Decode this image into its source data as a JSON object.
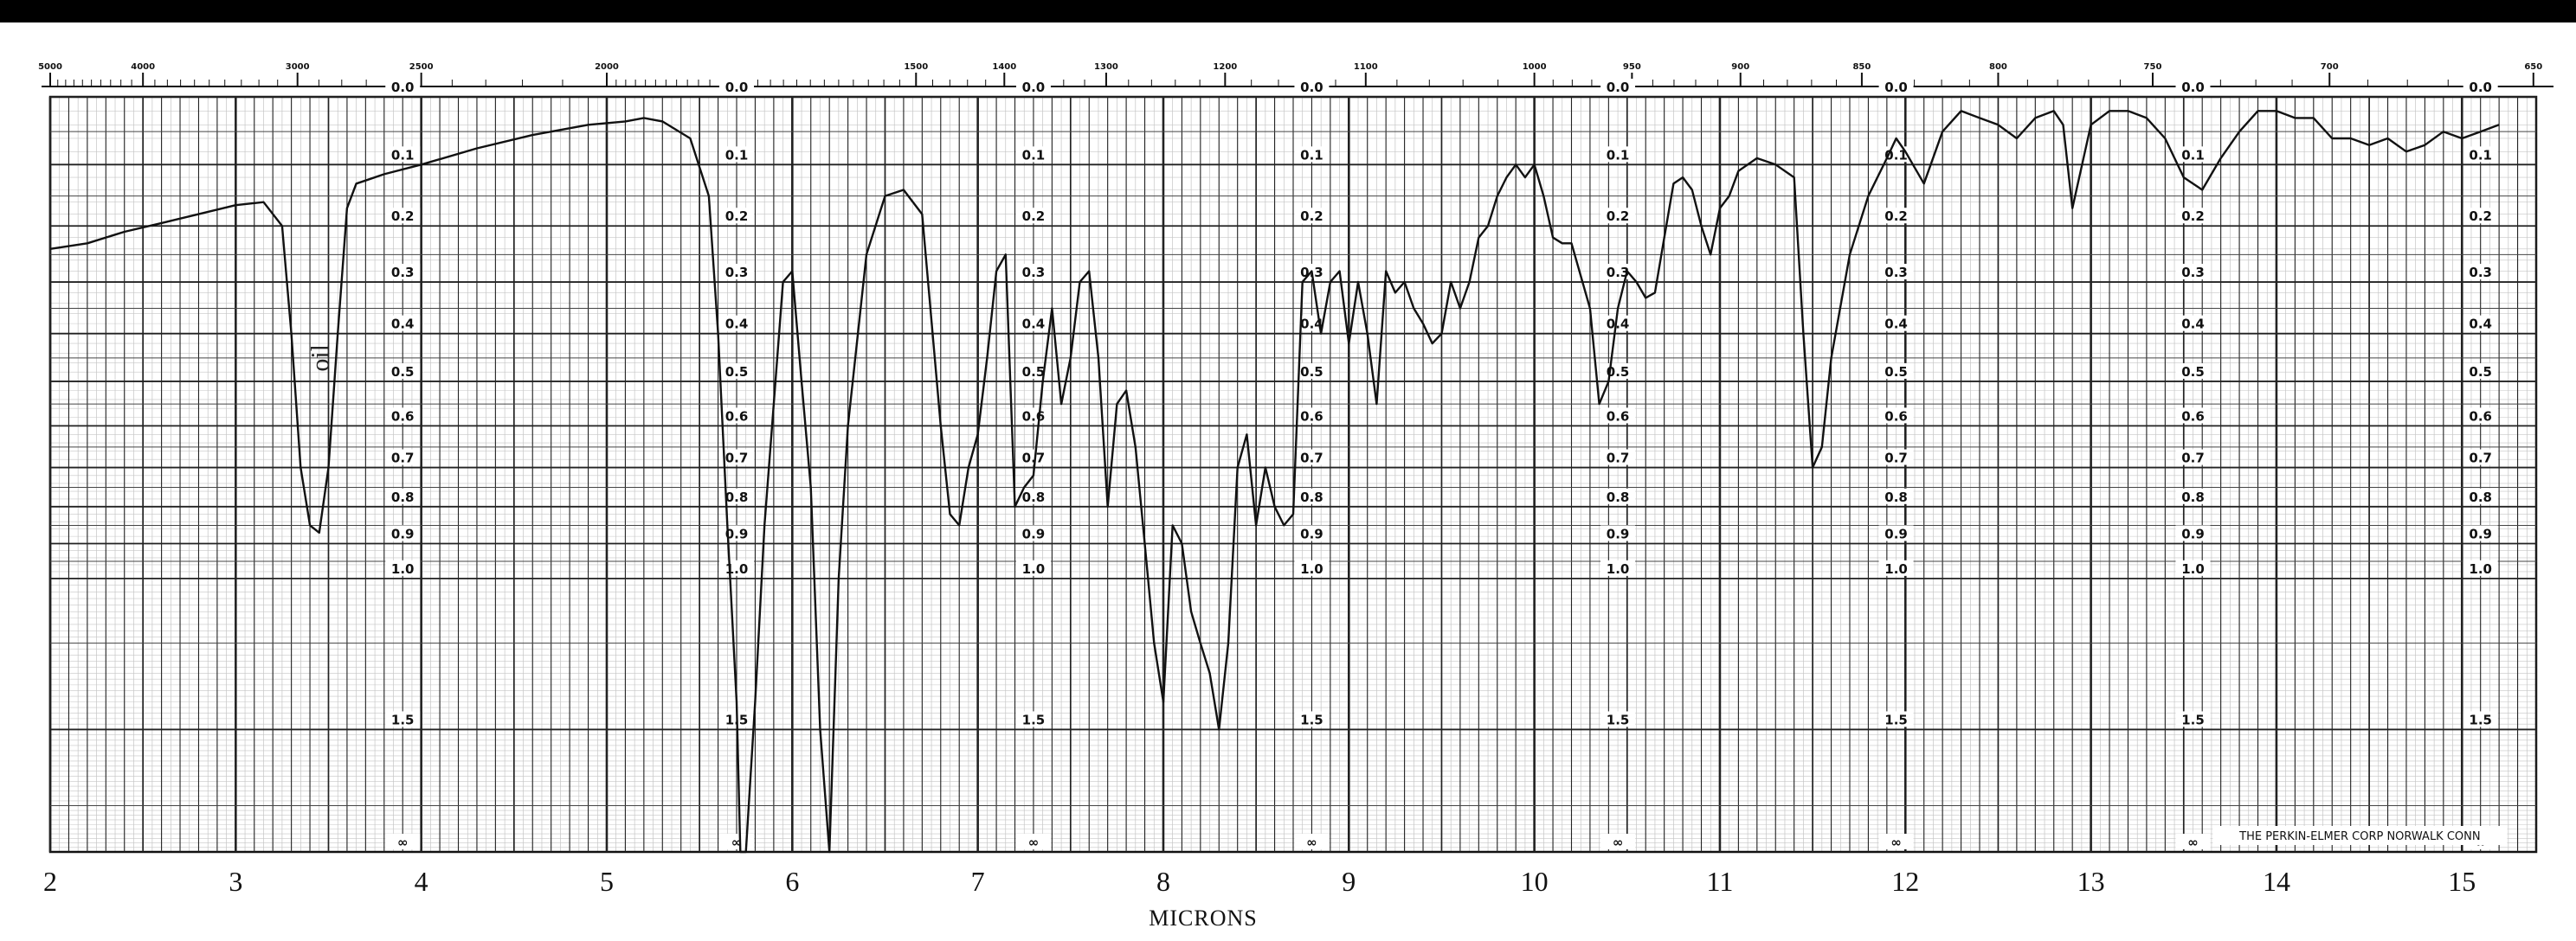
{
  "chart_data": {
    "type": "line",
    "xlabel": "MICRONS",
    "micron_ticks": [
      "2",
      "3",
      "4",
      "5",
      "6",
      "7",
      "8",
      "9",
      "10",
      "11",
      "12",
      "13",
      "14",
      "15"
    ],
    "wavenumber_ticks": [
      {
        "label": "5000",
        "um": 2.0
      },
      {
        "label": "4000",
        "um": 2.5
      },
      {
        "label": "3000",
        "um": 3.333
      },
      {
        "label": "2500",
        "um": 4.0
      },
      {
        "label": "2000",
        "um": 5.0
      },
      {
        "label": "1500",
        "um": 6.667
      },
      {
        "label": "1400",
        "um": 7.143
      },
      {
        "label": "1300",
        "um": 7.692
      },
      {
        "label": "1200",
        "um": 8.333
      },
      {
        "label": "1100",
        "um": 9.091
      },
      {
        "label": "1000",
        "um": 10.0
      },
      {
        "label": "950",
        "um": 10.526
      },
      {
        "label": "900",
        "um": 11.111
      },
      {
        "label": "850",
        "um": 11.765
      },
      {
        "label": "800",
        "um": 12.5
      },
      {
        "label": "750",
        "um": 13.333
      },
      {
        "label": "700",
        "um": 14.286
      },
      {
        "label": "650",
        "um": 15.385
      }
    ],
    "absorbance_labels": [
      {
        "label": "0.0",
        "value": 0.0
      },
      {
        "label": "0.1",
        "value": 0.1
      },
      {
        "label": "0.2",
        "value": 0.2
      },
      {
        "label": "0.3",
        "value": 0.3
      },
      {
        "label": "0.4",
        "value": 0.4
      },
      {
        "label": "0.5",
        "value": 0.5
      },
      {
        "label": "0.6",
        "value": 0.6
      },
      {
        "label": "0.7",
        "value": 0.7
      },
      {
        "label": "0.8",
        "value": 0.8
      },
      {
        "label": "0.9",
        "value": 0.9
      },
      {
        "label": "1.0",
        "value": 1.0
      },
      {
        "label": "1.5",
        "value": 1.5
      },
      {
        "label": "∞",
        "value": "inf"
      }
    ],
    "label_columns_um": [
      3.9,
      5.7,
      7.3,
      8.8,
      10.45,
      11.95,
      13.55,
      15.1
    ],
    "x_range_um": [
      2.0,
      15.4
    ],
    "grid": true,
    "annotations": [
      {
        "text": "oil",
        "um": 3.5,
        "absorbance": 0.45,
        "rotated": true
      },
      {
        "text": "THE PERKIN-ELMER CORP  NORWALK  CONN",
        "um": 14.45,
        "absorbance": "1.5-inf"
      }
    ],
    "series": [
      {
        "x": [
          2.0,
          2.2,
          2.4,
          2.6,
          2.8,
          3.0,
          3.15,
          3.25,
          3.3,
          3.35,
          3.4,
          3.45,
          3.5,
          3.55,
          3.6,
          3.65,
          3.7,
          3.8,
          4.0,
          4.3,
          4.6,
          4.9,
          5.1,
          5.2,
          5.3,
          5.45,
          5.55,
          5.6,
          5.65,
          5.7,
          5.72,
          5.75,
          5.8,
          5.85,
          5.9,
          5.95,
          6.0,
          6.05,
          6.1,
          6.15,
          6.2,
          6.25,
          6.3,
          6.4,
          6.5,
          6.6,
          6.7,
          6.8,
          6.85,
          6.9,
          6.95,
          7.0,
          7.05,
          7.1,
          7.15,
          7.2,
          7.25,
          7.3,
          7.35,
          7.4,
          7.45,
          7.5,
          7.55,
          7.6,
          7.65,
          7.7,
          7.75,
          7.8,
          7.85,
          7.9,
          7.95,
          8.0,
          8.05,
          8.1,
          8.15,
          8.2,
          8.25,
          8.3,
          8.35,
          8.4,
          8.45,
          8.5,
          8.55,
          8.6,
          8.65,
          8.7,
          8.75,
          8.8,
          8.85,
          8.9,
          8.95,
          9.0,
          9.05,
          9.1,
          9.15,
          9.2,
          9.25,
          9.3,
          9.35,
          9.4,
          9.45,
          9.5,
          9.55,
          9.6,
          9.65,
          9.7,
          9.75,
          9.8,
          9.85,
          9.9,
          9.95,
          10.0,
          10.05,
          10.1,
          10.15,
          10.2,
          10.3,
          10.35,
          10.4,
          10.45,
          10.5,
          10.55,
          10.6,
          10.65,
          10.7,
          10.75,
          10.8,
          10.85,
          10.9,
          10.95,
          11.0,
          11.05,
          11.1,
          11.2,
          11.3,
          11.4,
          11.45,
          11.5,
          11.55,
          11.6,
          11.7,
          11.8,
          11.9,
          11.95,
          12.0,
          12.1,
          12.2,
          12.3,
          12.4,
          12.5,
          12.6,
          12.7,
          12.8,
          12.85,
          12.9,
          13.0,
          13.1,
          13.2,
          13.3,
          13.4,
          13.5,
          13.6,
          13.7,
          13.8,
          13.9,
          14.0,
          14.1,
          14.2,
          14.3,
          14.4,
          14.5,
          14.6,
          14.7,
          14.8,
          14.9,
          15.0,
          15.1,
          15.2
        ],
        "values": [
          0.24,
          0.23,
          0.21,
          0.195,
          0.18,
          0.165,
          0.16,
          0.2,
          0.4,
          0.7,
          0.85,
          0.87,
          0.7,
          0.4,
          0.17,
          0.13,
          0.125,
          0.115,
          0.1,
          0.075,
          0.055,
          0.04,
          0.035,
          0.03,
          0.035,
          0.06,
          0.15,
          0.4,
          0.85,
          1.4,
          2.0,
          2.0,
          1.4,
          0.85,
          0.55,
          0.3,
          0.28,
          0.5,
          0.75,
          1.5,
          2.0,
          1.0,
          0.6,
          0.25,
          0.15,
          0.14,
          0.18,
          0.6,
          0.82,
          0.85,
          0.7,
          0.62,
          0.45,
          0.28,
          0.25,
          0.8,
          0.75,
          0.72,
          0.5,
          0.35,
          0.55,
          0.45,
          0.3,
          0.28,
          0.45,
          0.8,
          0.55,
          0.52,
          0.65,
          0.9,
          1.2,
          1.4,
          0.85,
          0.9,
          1.1,
          1.2,
          1.3,
          1.5,
          1.2,
          0.7,
          0.62,
          0.85,
          0.7,
          0.8,
          0.85,
          0.82,
          0.3,
          0.28,
          0.4,
          0.3,
          0.28,
          0.42,
          0.3,
          0.4,
          0.55,
          0.28,
          0.32,
          0.3,
          0.35,
          0.38,
          0.42,
          0.4,
          0.3,
          0.35,
          0.3,
          0.22,
          0.2,
          0.15,
          0.12,
          0.1,
          0.12,
          0.1,
          0.15,
          0.22,
          0.23,
          0.23,
          0.35,
          0.55,
          0.5,
          0.35,
          0.28,
          0.3,
          0.33,
          0.32,
          0.22,
          0.13,
          0.12,
          0.14,
          0.2,
          0.25,
          0.17,
          0.15,
          0.11,
          0.09,
          0.1,
          0.12,
          0.4,
          0.7,
          0.65,
          0.45,
          0.25,
          0.15,
          0.09,
          0.06,
          0.08,
          0.13,
          0.05,
          0.02,
          0.03,
          0.04,
          0.06,
          0.03,
          0.02,
          0.04,
          0.17,
          0.04,
          0.02,
          0.02,
          0.03,
          0.06,
          0.12,
          0.14,
          0.09,
          0.05,
          0.02,
          0.02,
          0.03,
          0.03,
          0.06,
          0.06,
          0.07,
          0.06,
          0.08,
          0.07,
          0.05,
          0.06,
          0.05,
          0.04
        ]
      }
    ]
  }
}
